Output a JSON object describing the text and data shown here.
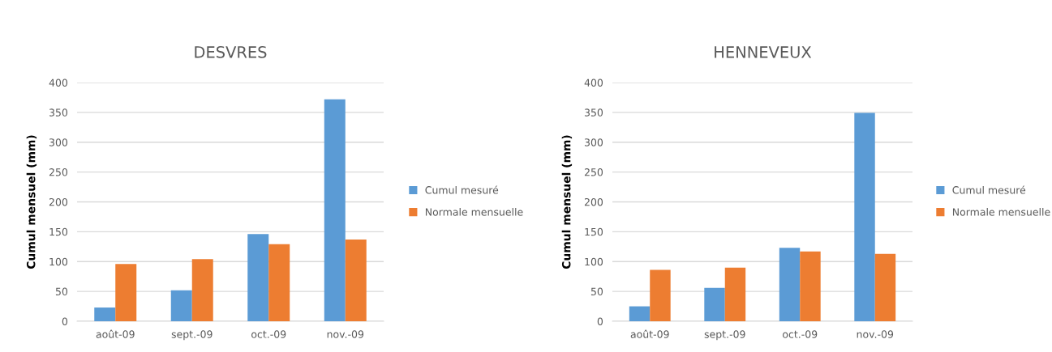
{
  "chart_data": [
    {
      "type": "bar",
      "title": "DESVRES",
      "ylabel": "Cumul mensuel (mm)",
      "categories": [
        "août-09",
        "sept.-09",
        "oct.-09",
        "nov.-09"
      ],
      "series": [
        {
          "name": "Cumul mesuré",
          "color": "#5b9bd5",
          "values": [
            23,
            52,
            146,
            372
          ]
        },
        {
          "name": "Normale mensuelle",
          "color": "#ed7d31",
          "values": [
            96,
            104,
            129,
            137
          ]
        }
      ],
      "ylim": [
        0,
        400
      ],
      "yticks": [
        0,
        50,
        100,
        150,
        200,
        250,
        300,
        350,
        400
      ],
      "grid": "y",
      "legend": "right"
    },
    {
      "type": "bar",
      "title": "HENNEVEUX",
      "ylabel": "Cumul mensuel (mm)",
      "categories": [
        "août-09",
        "sept.-09",
        "oct.-09",
        "nov.-09"
      ],
      "series": [
        {
          "name": "Cumul mesuré",
          "color": "#5b9bd5",
          "values": [
            25,
            56,
            123,
            349
          ]
        },
        {
          "name": "Normale mensuelle",
          "color": "#ed7d31",
          "values": [
            86,
            90,
            117,
            113
          ]
        }
      ],
      "ylim": [
        0,
        400
      ],
      "yticks": [
        0,
        50,
        100,
        150,
        200,
        250,
        300,
        350,
        400
      ],
      "grid": "y",
      "legend": "right"
    }
  ]
}
